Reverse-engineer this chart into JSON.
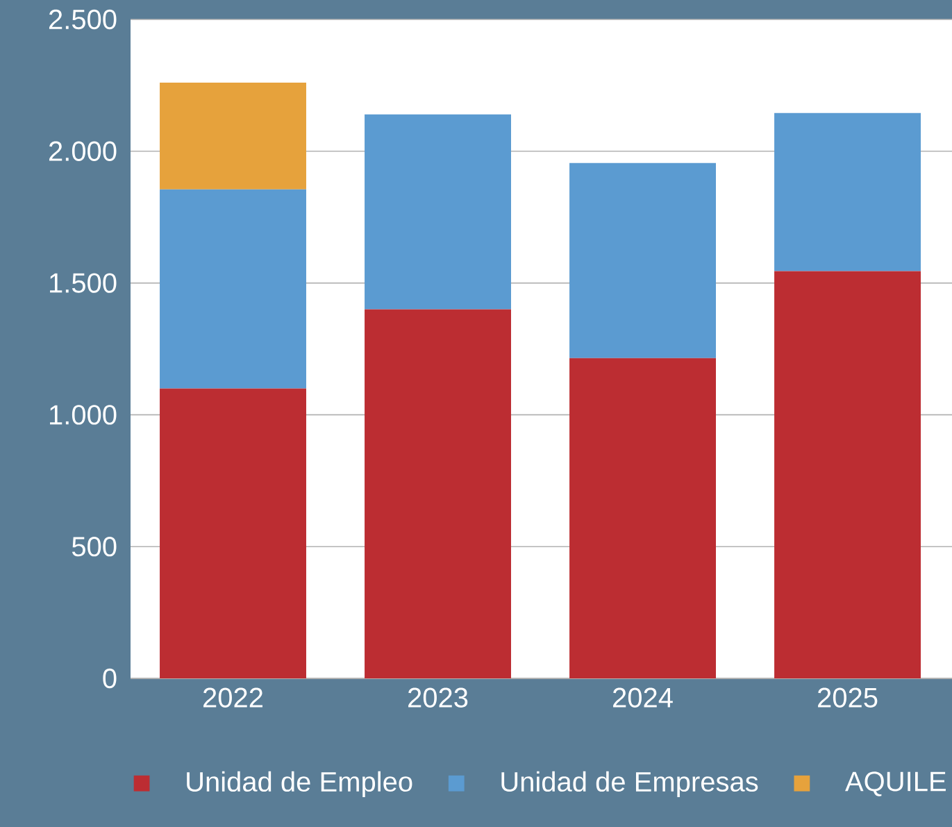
{
  "chart_data": {
    "type": "bar",
    "stacked": true,
    "categories": [
      "2022",
      "2023",
      "2024",
      "2025"
    ],
    "series": [
      {
        "name": "Unidad de Empleo",
        "color": "#bc2d32",
        "values": [
          1100,
          1400,
          1215,
          1545
        ]
      },
      {
        "name": "Unidad de Empresas",
        "color": "#5b9bd1",
        "values": [
          755,
          740,
          740,
          600
        ]
      },
      {
        "name": "AQUILE",
        "color": "#e6a23c",
        "values": [
          405,
          null,
          null,
          null
        ]
      }
    ],
    "ylim": [
      0,
      2500
    ],
    "yticks": [
      {
        "value": 0,
        "label": "0"
      },
      {
        "value": 500,
        "label": "500"
      },
      {
        "value": 1000,
        "label": "1.000"
      },
      {
        "value": 1500,
        "label": "1.500"
      },
      {
        "value": 2000,
        "label": "2.000"
      },
      {
        "value": 2500,
        "label": "2.500"
      }
    ],
    "grid": "y",
    "legend": "bottom"
  }
}
